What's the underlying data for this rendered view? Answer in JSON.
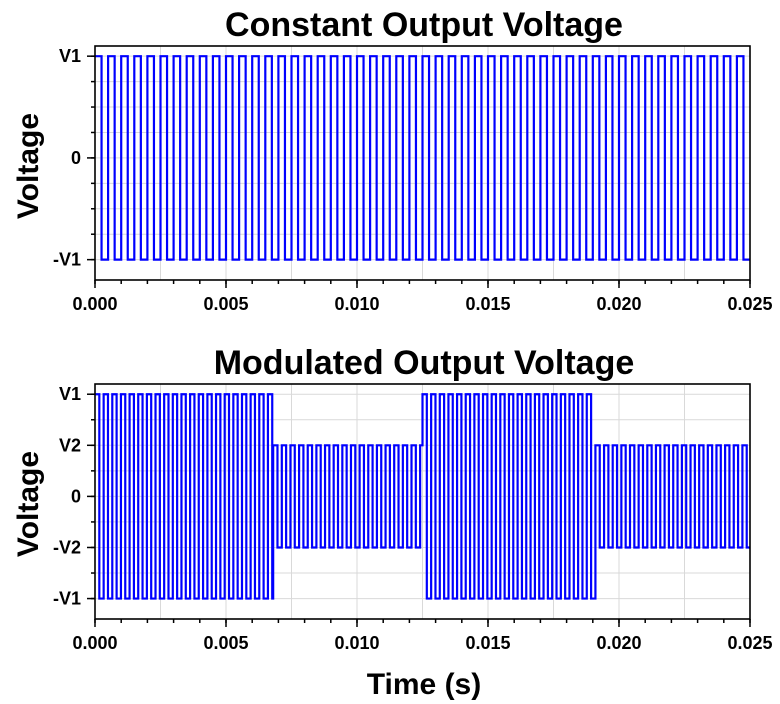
{
  "chart_data": [
    {
      "type": "line",
      "title": "Constant Output Voltage",
      "xlabel": "",
      "ylabel": "Voltage",
      "xlim": [
        0.0,
        0.025
      ],
      "x_ticks": [
        "0.000",
        "0.005",
        "0.010",
        "0.015",
        "0.020",
        "0.025"
      ],
      "x_tick_values": [
        0.0,
        0.005,
        0.01,
        0.015,
        0.02,
        0.025
      ],
      "ylim": [
        -1.2,
        1.1
      ],
      "y_ticks": [
        {
          "label": "V1",
          "value": 1
        },
        {
          "label": "0",
          "value": 0
        },
        {
          "label": "-V1",
          "value": -1
        }
      ],
      "grid": true,
      "line_color": "#0000ff",
      "series": [
        {
          "waveform": "square",
          "period_s": 0.0005,
          "high": 1,
          "low": -1,
          "segments": [
            {
              "t_start": 0.0,
              "t_end": 0.025,
              "amplitude": 1
            }
          ]
        }
      ]
    },
    {
      "type": "line",
      "title": "Modulated Output Voltage",
      "xlabel": "Time (s)",
      "ylabel": "Voltage",
      "xlim": [
        0.0,
        0.025
      ],
      "x_ticks": [
        "0.000",
        "0.005",
        "0.010",
        "0.015",
        "0.020",
        "0.025"
      ],
      "x_tick_values": [
        0.0,
        0.005,
        0.01,
        0.015,
        0.02,
        0.025
      ],
      "ylim": [
        -1.2,
        1.1
      ],
      "y_ticks": [
        {
          "label": "V1",
          "value": 1
        },
        {
          "label": "V2",
          "value": 0.5
        },
        {
          "label": "0",
          "value": 0
        },
        {
          "label": "-V2",
          "value": -0.5
        },
        {
          "label": "-V1",
          "value": -1
        }
      ],
      "grid": true,
      "line_color": "#0000ff",
      "series": [
        {
          "waveform": "square",
          "period_s": 0.00033,
          "segments": [
            {
              "t_start": 0.0,
              "t_end": 0.0068,
              "amplitude": 1
            },
            {
              "t_start": 0.0068,
              "t_end": 0.0125,
              "amplitude": 0.5
            },
            {
              "t_start": 0.0125,
              "t_end": 0.0191,
              "amplitude": 1
            },
            {
              "t_start": 0.0191,
              "t_end": 0.025,
              "amplitude": 0.5
            }
          ]
        }
      ]
    }
  ]
}
